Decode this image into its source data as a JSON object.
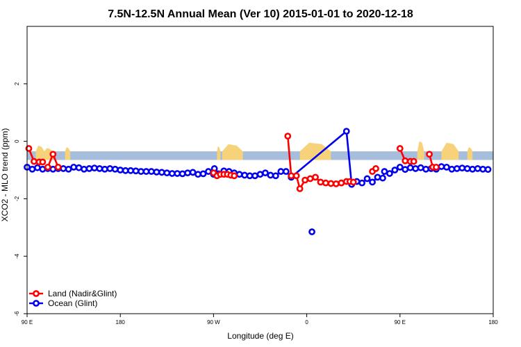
{
  "chart_data": {
    "type": "line",
    "title": "7.5N-12.5N Annual Mean (Ver 10)   2015-01-01 to 2020-12-18",
    "xlabel": "Longitude (deg E)",
    "ylabel": "XCO2 - MLO trend (ppm)",
    "xlim": [
      -90,
      180
    ],
    "ylim": [
      -6,
      4
    ],
    "x_ticks": [
      {
        "value": -90,
        "label": "90 E"
      },
      {
        "value": -36,
        "label": "180"
      },
      {
        "value": 18,
        "label": "90 W"
      },
      {
        "value": 72,
        "label": "0"
      },
      {
        "value": 126,
        "label": "90 E"
      },
      {
        "value": 180,
        "label": "180"
      }
    ],
    "y_ticks": [
      -6,
      -4,
      -2,
      0,
      2
    ],
    "legend_position": "bottom-left",
    "land_band": {
      "y_min": -0.65,
      "y_max": -0.35,
      "color": "#a6bddb"
    },
    "land_bumps": [
      {
        "x0": -85,
        "x1": -80,
        "h": 0.2
      },
      {
        "x0": -80,
        "x1": -75,
        "h": 0.12
      },
      {
        "x0": -68,
        "x1": -65,
        "h": 0.15
      },
      {
        "x0": 20,
        "x1": 22,
        "h": 0.18
      },
      {
        "x0": 23,
        "x1": 35,
        "h": 0.25
      },
      {
        "x0": 68,
        "x1": 86,
        "h": 0.3
      },
      {
        "x0": 136,
        "x1": 140,
        "h": 0.35
      },
      {
        "x0": 150,
        "x1": 160,
        "h": 0.3
      },
      {
        "x0": 165,
        "x1": 168,
        "h": 0.15
      }
    ],
    "series": [
      {
        "name": "Land (Nadir&Glint)",
        "color": "#ff0000",
        "segments": [
          [
            [
              -89,
              -0.25
            ],
            [
              -86,
              -0.7
            ],
            [
              -83,
              -0.72
            ],
            [
              -81,
              -0.72
            ]
          ],
          [
            [
              -78,
              -0.9
            ],
            [
              -75,
              -0.45
            ],
            [
              -72,
              -0.9
            ]
          ],
          [
            [
              18,
              -1.1
            ],
            [
              20,
              -1.2
            ],
            [
              22,
              -1.15
            ],
            [
              24,
              -1.15
            ],
            [
              26,
              -1.15
            ],
            [
              28,
              -1.18
            ],
            [
              30,
              -1.2
            ]
          ],
          [
            [
              61,
              0.18
            ],
            [
              63,
              -1.2
            ],
            [
              66,
              -1.2
            ],
            [
              68,
              -1.65
            ],
            [
              71,
              -1.35
            ],
            [
              74,
              -1.3
            ],
            [
              77,
              -1.25
            ],
            [
              80,
              -1.42
            ],
            [
              83,
              -1.45
            ],
            [
              86,
              -1.47
            ],
            [
              89,
              -1.48
            ],
            [
              92,
              -1.45
            ]
          ],
          [
            [
              92,
              -1.45
            ],
            [
              95,
              -1.4
            ],
            [
              97,
              -1.4
            ],
            [
              99,
              -1.42
            ]
          ],
          [
            [
              110,
              -1.05
            ],
            [
              112,
              -0.95
            ]
          ],
          [
            [
              126,
              -0.25
            ],
            [
              129,
              -0.68
            ],
            [
              132,
              -0.7
            ],
            [
              134,
              -0.7
            ]
          ],
          [
            [
              143,
              -0.45
            ],
            [
              145,
              -0.9
            ],
            [
              147,
              -0.9
            ]
          ]
        ]
      },
      {
        "name": "Ocean (Glint)",
        "color": "#0000ee",
        "points": [
          [
            -90,
            -0.9
          ],
          [
            -87,
            -0.97
          ],
          [
            -84,
            -0.92
          ],
          [
            -81,
            -0.97
          ],
          [
            -78,
            -0.95
          ],
          [
            -75,
            -0.97
          ],
          [
            -72,
            -0.95
          ],
          [
            -69,
            -0.95
          ],
          [
            -66,
            -0.97
          ],
          [
            -63,
            -0.9
          ],
          [
            -60,
            -0.92
          ],
          [
            -57,
            -0.97
          ],
          [
            -54,
            -0.95
          ],
          [
            -51,
            -0.93
          ],
          [
            -48,
            -0.95
          ],
          [
            -45,
            -0.97
          ],
          [
            -42,
            -0.95
          ],
          [
            -39,
            -0.97
          ],
          [
            -36,
            -1.0
          ],
          [
            -33,
            -1.02
          ],
          [
            -30,
            -1.02
          ],
          [
            -27,
            -1.03
          ],
          [
            -24,
            -1.05
          ],
          [
            -21,
            -1.05
          ],
          [
            -18,
            -1.05
          ],
          [
            -15,
            -1.07
          ],
          [
            -12,
            -1.08
          ],
          [
            -9,
            -1.1
          ],
          [
            -6,
            -1.12
          ],
          [
            -3,
            -1.12
          ],
          [
            0,
            -1.13
          ],
          [
            3,
            -1.1
          ],
          [
            6,
            -1.08
          ],
          [
            9,
            -1.15
          ],
          [
            12,
            -1.13
          ],
          [
            15,
            -1.05
          ],
          [
            18,
            -1.15
          ],
          [
            18.5,
            -0.95
          ],
          [
            21,
            -1.13
          ],
          [
            24,
            -1.03
          ],
          [
            27,
            -1.05
          ],
          [
            30,
            -1.1
          ],
          [
            33,
            -1.15
          ],
          [
            36,
            -1.18
          ],
          [
            39,
            -1.2
          ],
          [
            42,
            -1.2
          ],
          [
            45,
            -1.15
          ],
          [
            48,
            -1.1
          ],
          [
            51,
            -1.18
          ],
          [
            54,
            -1.2
          ],
          [
            57,
            -1.05
          ],
          [
            60,
            -1.05
          ],
          [
            63,
            -1.25
          ],
          [
            75,
            -3.15
          ],
          [
            95,
            0.35
          ],
          [
            98,
            -1.5
          ],
          [
            101,
            -1.4
          ],
          [
            104,
            -1.45
          ],
          [
            107,
            -1.3
          ],
          [
            110,
            -1.42
          ],
          [
            113,
            -1.25
          ],
          [
            116,
            -1.28
          ],
          [
            117,
            -1.05
          ],
          [
            120,
            -1.12
          ],
          [
            123,
            -1.0
          ],
          [
            126,
            -0.9
          ],
          [
            129,
            -0.98
          ],
          [
            132,
            -0.92
          ],
          [
            135,
            -0.95
          ],
          [
            138,
            -0.92
          ],
          [
            141,
            -0.97
          ],
          [
            144,
            -0.95
          ],
          [
            147,
            -0.97
          ],
          [
            150,
            -0.88
          ],
          [
            153,
            -0.9
          ],
          [
            156,
            -0.97
          ],
          [
            159,
            -0.95
          ],
          [
            162,
            -0.93
          ],
          [
            165,
            -0.95
          ],
          [
            168,
            -0.97
          ],
          [
            171,
            -0.95
          ],
          [
            174,
            -0.97
          ],
          [
            177,
            -0.98
          ]
        ],
        "isolated": [
          [
            75,
            -3.15
          ]
        ]
      }
    ]
  }
}
